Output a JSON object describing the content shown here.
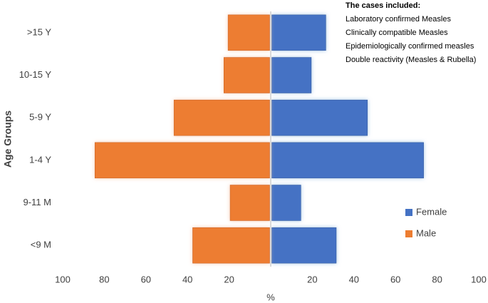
{
  "chart_data": {
    "type": "pyramid",
    "y_label": "Age Groups",
    "x_label": "%",
    "categories": [
      ">15 Y",
      "10-15 Y",
      "5-9 Y",
      "1-4 Y",
      "9-11 M",
      "<9 M"
    ],
    "series": [
      {
        "name": "Female",
        "color": "#4472c4",
        "values": [
          26,
          19,
          46,
          73,
          14,
          31
        ]
      },
      {
        "name": "Male",
        "color": "#ed7d31",
        "values": [
          20,
          22,
          46,
          84,
          19,
          37
        ]
      }
    ],
    "xlim": [
      -100,
      100
    ],
    "xticks": [
      {
        "value": -100,
        "label": "100"
      },
      {
        "value": -80,
        "label": "80"
      },
      {
        "value": -60,
        "label": "60"
      },
      {
        "value": -40,
        "label": "40"
      },
      {
        "value": -20,
        "label": "20"
      },
      20,
      40,
      60,
      80,
      100
    ],
    "annotation": {
      "title": "The cases included:",
      "lines": [
        "Laboratory confirmed Measles",
        "Clinically compatible Measles",
        "Epidemiologically confirmed measles",
        "Double reactivity (Measles & Rubella)"
      ]
    }
  }
}
